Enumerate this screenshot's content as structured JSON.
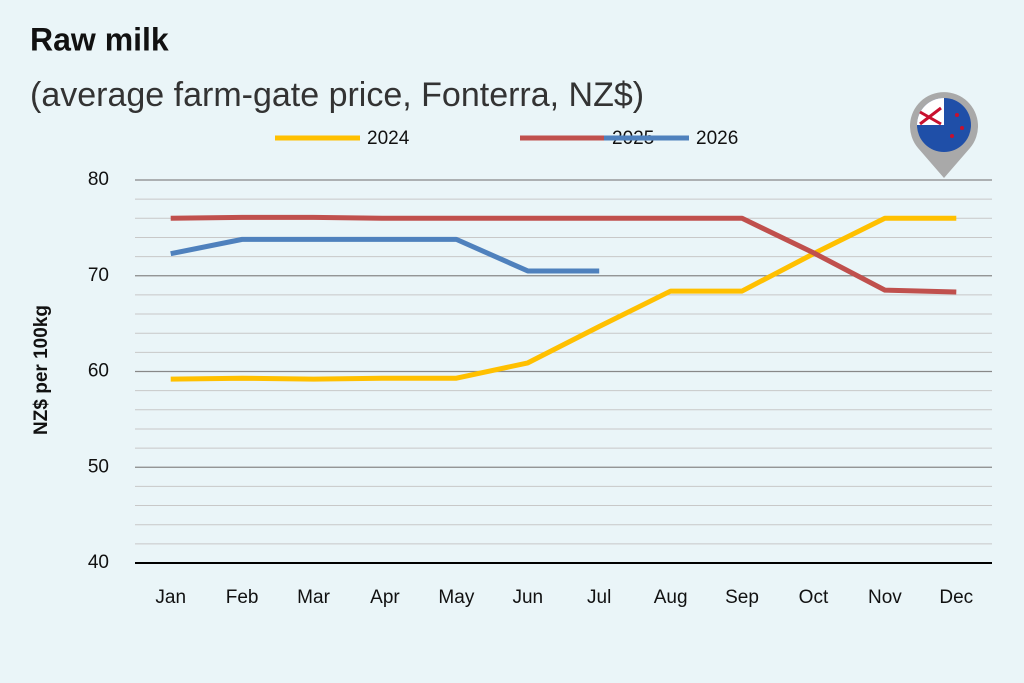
{
  "chart_data": {
    "type": "line",
    "title": "Raw milk",
    "subtitle": "(average farm-gate price, Fonterra, NZ$)",
    "y_label": "NZ$ per 100kg",
    "categories": [
      "Jan",
      "Feb",
      "Mar",
      "Apr",
      "May",
      "Jun",
      "Jul",
      "Aug",
      "Sep",
      "Oct",
      "Nov",
      "Dec"
    ],
    "series": [
      {
        "name": "2024",
        "color": "#ffc000",
        "values": [
          59.2,
          59.3,
          59.2,
          59.3,
          59.3,
          60.9,
          64.7,
          68.4,
          68.4,
          72.3,
          76.0,
          76.0
        ]
      },
      {
        "name": "2025",
        "color": "#c0504d",
        "values": [
          76.0,
          76.1,
          76.1,
          76.0,
          76.0,
          76.0,
          76.0,
          76.0,
          76.0,
          72.4,
          68.5,
          68.3
        ]
      },
      {
        "name": "2026",
        "color": "#4f81bd",
        "values": [
          72.3,
          73.8,
          73.8,
          73.8,
          73.8,
          70.5,
          70.5,
          null,
          null,
          null,
          null,
          null
        ]
      }
    ],
    "ylim": [
      40,
      80
    ],
    "yticks": [
      40,
      50,
      60,
      70,
      80
    ],
    "minor_yticks": [
      42,
      44,
      46,
      48,
      52,
      54,
      56,
      58,
      62,
      64,
      66,
      68,
      72,
      74,
      76,
      78
    ],
    "grid": true,
    "legend": "top"
  }
}
